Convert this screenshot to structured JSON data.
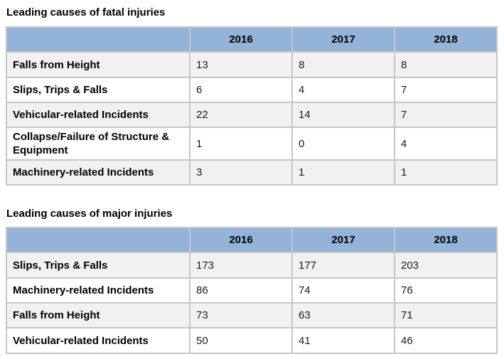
{
  "fatal": {
    "title": "Leading causes of fatal injuries",
    "headers": [
      "",
      "2016",
      "2017",
      "2018"
    ],
    "rows": [
      {
        "label": "Falls from Height",
        "values": [
          "13",
          "8",
          "8"
        ]
      },
      {
        "label": "Slips, Trips & Falls",
        "values": [
          "6",
          "4",
          "7"
        ]
      },
      {
        "label": "Vehicular-related Incidents",
        "values": [
          "22",
          "14",
          "7"
        ]
      },
      {
        "label": "Collapse/Failure of Structure & Equipment",
        "values": [
          "1",
          "0",
          "4"
        ]
      },
      {
        "label": "Machinery-related Incidents",
        "values": [
          "3",
          "1",
          "1"
        ]
      }
    ]
  },
  "major": {
    "title": "Leading causes of major injuries",
    "headers": [
      "",
      "2016",
      "2017",
      "2018"
    ],
    "rows": [
      {
        "label": "Slips, Trips & Falls",
        "values": [
          "173",
          "177",
          "203"
        ]
      },
      {
        "label": "Machinery-related Incidents",
        "values": [
          "86",
          "74",
          "76"
        ]
      },
      {
        "label": "Falls from Height",
        "values": [
          "73",
          "63",
          "71"
        ]
      },
      {
        "label": "Vehicular-related Incidents",
        "values": [
          "50",
          "41",
          "46"
        ]
      }
    ]
  },
  "colors": {
    "header_bg": "#94b3d9",
    "row_alt_bg": "#f1f1f1",
    "border": "#c6c6c6"
  }
}
